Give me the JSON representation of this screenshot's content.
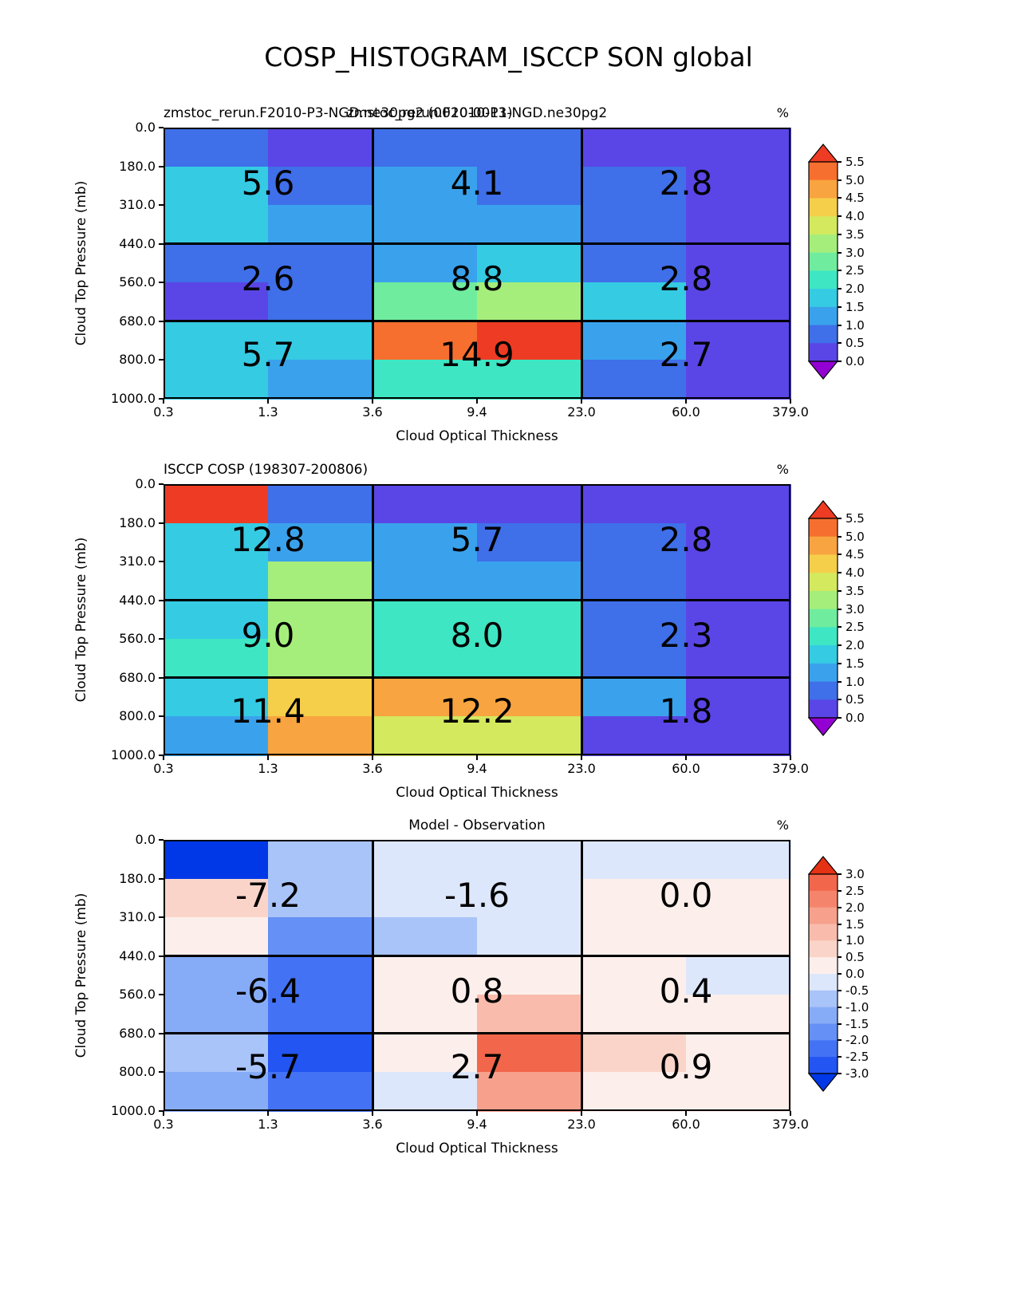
{
  "page_title": "COSP_HISTOGRAM_ISCCP SON global",
  "axes": {
    "x_label": "Cloud Optical Thickness",
    "y_label": "Cloud Top Pressure (mb)",
    "unit_label": "%",
    "x_ticks": [
      "0.3",
      "1.3",
      "3.6",
      "9.4",
      "23.0",
      "60.0",
      "379.0"
    ],
    "y_ticks": [
      "0.0",
      "180.0",
      "310.0",
      "440.0",
      "560.0",
      "680.0",
      "800.0",
      "1000.0"
    ]
  },
  "colormaps": {
    "rainbow": {
      "min": 0,
      "max": 5.5,
      "step": 0.5,
      "under": "#9400d3",
      "over": "#ee3b23",
      "stops": [
        "#5a46e6",
        "#3f6fe9",
        "#3aa2ec",
        "#35cbe3",
        "#3ee6c4",
        "#70ec9e",
        "#a5ee7b",
        "#d4e95e",
        "#f5cf4a",
        "#f8a440",
        "#f76f2e"
      ]
    },
    "diverging": {
      "min": -3,
      "max": 3,
      "step": 0.5,
      "under": "#0038e8",
      "over": "#e63214",
      "stops": [
        "#2255f2",
        "#4472f4",
        "#6590f5",
        "#87acf7",
        "#a9c4f8",
        "#dde7fb",
        "#fcefeb",
        "#fad4c9",
        "#f9bcac",
        "#f7a18d",
        "#f5846c",
        "#f2664b"
      ]
    }
  },
  "colorbars": {
    "absolute": {
      "ticks": [
        "5.5",
        "5.0",
        "4.5",
        "4.0",
        "3.5",
        "3.0",
        "2.5",
        "2.0",
        "1.5",
        "1.0",
        "0.5",
        "0.0"
      ]
    },
    "difference": {
      "ticks": [
        "3.0",
        "2.5",
        "2.0",
        "1.5",
        "1.0",
        "0.5",
        "0.0",
        "-0.5",
        "-1.0",
        "-1.5",
        "-2.0",
        "-2.5",
        "-3.0"
      ]
    }
  },
  "chart_data": [
    {
      "type": "heatmap",
      "title_left": "zmstoc_rerun.F2010-P3-NGD.ne30pg2 (0010-0011)",
      "title_center": "zmstoc_rerun.F2010-P3-NGD.ne30pg2",
      "unit": "%",
      "colormap": "rainbow",
      "colorbar": "absolute",
      "xlabel": "Cloud Optical Thickness",
      "ylabel": "Cloud Top Pressure (mb)",
      "x_bin_edges": [
        0.3,
        1.3,
        3.6,
        9.4,
        23.0,
        60.0,
        379.0
      ],
      "y_bin_edges": [
        0.0,
        180.0,
        310.0,
        440.0,
        560.0,
        680.0,
        800.0,
        1000.0
      ],
      "vmin": 0.0,
      "vmax": 5.5,
      "values": [
        [
          0.8,
          0.2,
          0.6,
          0.7,
          0.2,
          0.2
        ],
        [
          1.7,
          0.9,
          1.2,
          0.9,
          0.8,
          0.3
        ],
        [
          1.6,
          1.2,
          1.0,
          1.0,
          0.8,
          0.4
        ],
        [
          0.9,
          0.8,
          1.3,
          1.7,
          0.9,
          0.3
        ],
        [
          0.2,
          0.9,
          2.7,
          3.1,
          1.6,
          0.3
        ],
        [
          1.7,
          1.5,
          5.2,
          5.7,
          1.2,
          0.3
        ],
        [
          1.6,
          1.3,
          2.0,
          2.1,
          0.9,
          0.3
        ]
      ],
      "block_labels": [
        [
          "5.6",
          "4.1",
          "2.8"
        ],
        [
          "2.6",
          "8.8",
          "2.8"
        ],
        [
          "5.7",
          "14.9",
          "2.7"
        ]
      ]
    },
    {
      "type": "heatmap",
      "title_left": "ISCCP COSP (198307-200806)",
      "unit": "%",
      "colormap": "rainbow",
      "colorbar": "absolute",
      "xlabel": "Cloud Optical Thickness",
      "ylabel": "Cloud Top Pressure (mb)",
      "x_bin_edges": [
        0.3,
        1.3,
        3.6,
        9.4,
        23.0,
        60.0,
        379.0
      ],
      "y_bin_edges": [
        0.0,
        180.0,
        310.0,
        440.0,
        560.0,
        680.0,
        800.0,
        1000.0
      ],
      "vmin": 0.0,
      "vmax": 5.5,
      "values": [
        [
          5.8,
          0.9,
          0.3,
          0.3,
          0.2,
          0.2
        ],
        [
          1.8,
          1.2,
          1.3,
          0.9,
          0.8,
          0.3
        ],
        [
          1.7,
          3.2,
          1.2,
          1.4,
          0.8,
          0.4
        ],
        [
          1.9,
          3.1,
          2.1,
          2.0,
          0.8,
          0.3
        ],
        [
          2.2,
          3.2,
          2.2,
          2.0,
          0.9,
          0.3
        ],
        [
          1.7,
          4.4,
          4.6,
          4.6,
          1.4,
          0.3
        ],
        [
          1.3,
          4.6,
          3.7,
          3.6,
          0.3,
          0.2
        ]
      ],
      "block_labels": [
        [
          "12.8",
          "5.7",
          "2.8"
        ],
        [
          "9.0",
          "8.0",
          "2.3"
        ],
        [
          "11.4",
          "12.2",
          "1.8"
        ]
      ]
    },
    {
      "type": "heatmap",
      "title_center": "Model - Observation",
      "unit": "%",
      "colormap": "diverging",
      "colorbar": "difference",
      "xlabel": "Cloud Optical Thickness",
      "ylabel": "Cloud Top Pressure (mb)",
      "x_bin_edges": [
        0.3,
        1.3,
        3.6,
        9.4,
        23.0,
        60.0,
        379.0
      ],
      "y_bin_edges": [
        0.0,
        180.0,
        310.0,
        440.0,
        560.0,
        680.0,
        800.0,
        1000.0
      ],
      "vmin": -3.0,
      "vmax": 3.0,
      "values": [
        [
          -5.0,
          -0.7,
          -0.3,
          -0.3,
          -0.2,
          -0.2
        ],
        [
          0.6,
          -0.8,
          -0.4,
          -0.3,
          0.1,
          0.2
        ],
        [
          0.4,
          -1.9,
          -0.6,
          -0.3,
          0.2,
          0.2
        ],
        [
          -1.3,
          -2.2,
          0.1,
          0.2,
          0.0,
          -0.2
        ],
        [
          -1.2,
          -2.3,
          0.2,
          1.2,
          0.2,
          0.1
        ],
        [
          -0.9,
          -2.7,
          0.4,
          2.8,
          0.8,
          0.2
        ],
        [
          -1.2,
          -2.5,
          -0.3,
          1.5,
          0.1,
          0.1
        ]
      ],
      "block_labels": [
        [
          "-7.2",
          "-1.6",
          "0.0"
        ],
        [
          "-6.4",
          "0.8",
          "0.4"
        ],
        [
          "-5.7",
          "2.7",
          "0.9"
        ]
      ]
    }
  ]
}
